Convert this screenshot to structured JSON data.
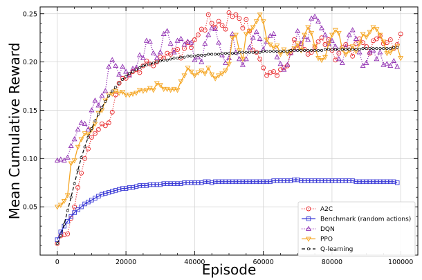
{
  "chart_data": {
    "type": "line",
    "title": "",
    "xlabel": "Episode",
    "ylabel": "Mean Cumulative Reward",
    "xlim": [
      -5000,
      105000
    ],
    "ylim": [
      0.0,
      0.257
    ],
    "xticks": [
      0,
      20000,
      40000,
      60000,
      80000,
      100000
    ],
    "yticks": [
      0.05,
      0.1,
      0.15,
      0.2,
      0.25
    ],
    "xtick_labels": [
      "0",
      "20000",
      "40000",
      "60000",
      "80000",
      "100000"
    ],
    "ytick_labels": [
      "0.05",
      "0.10",
      "0.15",
      "0.20",
      "0.25"
    ],
    "grid": true,
    "legend_position": "lower-right",
    "series": [
      {
        "name": "A2C",
        "color": "#e8282b",
        "marker": "circle",
        "linestyle": "dotted",
        "x": [
          0,
          1000,
          2000,
          3000,
          4000,
          5000,
          6000,
          7000,
          8000,
          9000,
          10000,
          11000,
          12000,
          13000,
          14000,
          15000,
          16000,
          17000,
          18000,
          19000,
          20000,
          21000,
          22000,
          23000,
          24000,
          25000,
          26000,
          27000,
          28000,
          29000,
          30000,
          31000,
          32000,
          33000,
          34000,
          35000,
          36000,
          37000,
          38000,
          39000,
          40000,
          41000,
          42000,
          43000,
          44000,
          45000,
          46000,
          47000,
          48000,
          49000,
          50000,
          51000,
          52000,
          53000,
          54000,
          55000,
          56000,
          57000,
          58000,
          59000,
          60000,
          61000,
          62000,
          63000,
          64000,
          65000,
          66000,
          67000,
          68000,
          69000,
          70000,
          71000,
          72000,
          73000,
          74000,
          75000,
          76000,
          77000,
          78000,
          79000,
          80000,
          81000,
          82000,
          83000,
          84000,
          85000,
          86000,
          87000,
          88000,
          89000,
          90000,
          91000,
          92000,
          93000,
          94000,
          95000,
          96000,
          97000,
          98000,
          99000,
          100000
        ],
        "y": [
          0.012,
          0.02,
          0.021,
          0.022,
          0.038,
          0.05,
          0.07,
          0.085,
          0.1,
          0.11,
          0.122,
          0.126,
          0.13,
          0.136,
          0.134,
          0.137,
          0.148,
          0.166,
          0.178,
          0.183,
          0.183,
          0.187,
          0.19,
          0.192,
          0.189,
          0.196,
          0.201,
          0.198,
          0.196,
          0.2,
          0.205,
          0.204,
          0.209,
          0.208,
          0.212,
          0.213,
          0.204,
          0.214,
          0.22,
          0.215,
          0.223,
          0.228,
          0.234,
          0.233,
          0.249,
          0.24,
          0.236,
          0.242,
          0.238,
          0.234,
          0.251,
          0.247,
          0.249,
          0.245,
          0.235,
          0.244,
          0.232,
          0.212,
          0.21,
          0.203,
          0.194,
          0.186,
          0.189,
          0.19,
          0.186,
          0.192,
          0.194,
          0.196,
          0.21,
          0.223,
          0.214,
          0.219,
          0.213,
          0.208,
          0.21,
          0.215,
          0.221,
          0.225,
          0.218,
          0.223,
          0.212,
          0.202,
          0.209,
          0.215,
          0.218,
          0.215,
          0.206,
          0.219,
          0.224,
          0.22,
          0.216,
          0.209,
          0.222,
          0.224,
          0.227,
          0.219,
          0.22,
          0.223,
          0.214,
          0.218,
          0.229
        ]
      },
      {
        "name": "Benchmark (random actions)",
        "color": "#3a3ad6",
        "marker": "square",
        "linestyle": "solid",
        "x": [
          0,
          1000,
          2000,
          3000,
          4000,
          5000,
          6000,
          7000,
          8000,
          9000,
          10000,
          11000,
          12000,
          13000,
          14000,
          15000,
          16000,
          17000,
          18000,
          19000,
          20000,
          21000,
          22000,
          23000,
          24000,
          25000,
          26000,
          27000,
          28000,
          29000,
          30000,
          31000,
          32000,
          33000,
          34000,
          35000,
          36000,
          37000,
          38000,
          39000,
          40000,
          41000,
          42000,
          43000,
          44000,
          45000,
          46000,
          47000,
          48000,
          49000,
          50000,
          51000,
          52000,
          53000,
          54000,
          55000,
          56000,
          57000,
          58000,
          59000,
          60000,
          61000,
          62000,
          63000,
          64000,
          65000,
          66000,
          67000,
          68000,
          69000,
          70000,
          71000,
          72000,
          73000,
          74000,
          75000,
          76000,
          77000,
          78000,
          79000,
          80000,
          81000,
          82000,
          83000,
          84000,
          85000,
          86000,
          87000,
          88000,
          89000,
          90000,
          91000,
          92000,
          93000,
          94000,
          95000,
          96000,
          97000,
          98000,
          99000
        ],
        "y": [
          0.016,
          0.024,
          0.03,
          0.035,
          0.04,
          0.044,
          0.047,
          0.05,
          0.053,
          0.055,
          0.057,
          0.059,
          0.061,
          0.063,
          0.064,
          0.065,
          0.066,
          0.067,
          0.068,
          0.069,
          0.069,
          0.07,
          0.07,
          0.071,
          0.072,
          0.072,
          0.072,
          0.073,
          0.073,
          0.073,
          0.073,
          0.074,
          0.074,
          0.074,
          0.074,
          0.074,
          0.074,
          0.075,
          0.075,
          0.075,
          0.075,
          0.075,
          0.075,
          0.076,
          0.076,
          0.075,
          0.076,
          0.076,
          0.076,
          0.076,
          0.076,
          0.076,
          0.076,
          0.076,
          0.076,
          0.076,
          0.076,
          0.076,
          0.076,
          0.076,
          0.076,
          0.076,
          0.076,
          0.077,
          0.077,
          0.077,
          0.077,
          0.077,
          0.077,
          0.078,
          0.078,
          0.077,
          0.077,
          0.077,
          0.077,
          0.077,
          0.077,
          0.077,
          0.077,
          0.077,
          0.077,
          0.077,
          0.077,
          0.077,
          0.077,
          0.077,
          0.077,
          0.076,
          0.076,
          0.076,
          0.076,
          0.076,
          0.076,
          0.076,
          0.076,
          0.076,
          0.076,
          0.076,
          0.076,
          0.075
        ]
      },
      {
        "name": "DQN",
        "color": "#8e2bb0",
        "marker": "triangle-up",
        "linestyle": "dotted",
        "x": [
          0,
          1000,
          2000,
          3000,
          4000,
          5000,
          6000,
          7000,
          8000,
          9000,
          10000,
          11000,
          12000,
          13000,
          14000,
          15000,
          16000,
          17000,
          18000,
          19000,
          20000,
          21000,
          22000,
          23000,
          24000,
          25000,
          26000,
          27000,
          28000,
          29000,
          30000,
          31000,
          32000,
          33000,
          34000,
          35000,
          36000,
          37000,
          38000,
          39000,
          40000,
          41000,
          42000,
          43000,
          44000,
          45000,
          46000,
          47000,
          48000,
          49000,
          50000,
          51000,
          52000,
          53000,
          54000,
          55000,
          56000,
          57000,
          58000,
          59000,
          60000,
          61000,
          62000,
          63000,
          64000,
          65000,
          66000,
          67000,
          68000,
          69000,
          70000,
          71000,
          72000,
          73000,
          74000,
          75000,
          76000,
          77000,
          78000,
          79000,
          80000,
          81000,
          82000,
          83000,
          84000,
          85000,
          86000,
          87000,
          88000,
          89000,
          90000,
          91000,
          92000,
          93000,
          94000,
          95000,
          96000,
          97000,
          98000,
          99000
        ],
        "y": [
          0.098,
          0.099,
          0.098,
          0.101,
          0.113,
          0.12,
          0.13,
          0.137,
          0.136,
          0.13,
          0.15,
          0.16,
          0.155,
          0.165,
          0.17,
          0.195,
          0.202,
          0.196,
          0.187,
          0.195,
          0.19,
          0.186,
          0.193,
          0.194,
          0.207,
          0.204,
          0.222,
          0.221,
          0.209,
          0.204,
          0.21,
          0.229,
          0.232,
          0.219,
          0.21,
          0.222,
          0.224,
          0.218,
          0.221,
          0.22,
          0.202,
          0.205,
          0.2,
          0.219,
          0.228,
          0.235,
          0.234,
          0.22,
          0.207,
          0.199,
          0.204,
          0.229,
          0.21,
          0.203,
          0.197,
          0.203,
          0.215,
          0.225,
          0.231,
          0.224,
          0.213,
          0.221,
          0.227,
          0.229,
          0.205,
          0.198,
          0.192,
          0.197,
          0.209,
          0.213,
          0.232,
          0.219,
          0.226,
          0.223,
          0.245,
          0.247,
          0.242,
          0.235,
          0.228,
          0.219,
          0.222,
          0.216,
          0.203,
          0.199,
          0.215,
          0.228,
          0.233,
          0.224,
          0.21,
          0.196,
          0.199,
          0.21,
          0.212,
          0.203,
          0.21,
          0.197,
          0.198,
          0.196,
          0.201,
          0.195
        ]
      },
      {
        "name": "PPO",
        "color": "#f5a623",
        "marker": "triangle-down",
        "linestyle": "solid",
        "x": [
          0,
          1000,
          2000,
          3000,
          4000,
          5000,
          6000,
          7000,
          8000,
          9000,
          10000,
          11000,
          12000,
          13000,
          14000,
          15000,
          16000,
          17000,
          18000,
          19000,
          20000,
          21000,
          22000,
          23000,
          24000,
          25000,
          26000,
          27000,
          28000,
          29000,
          30000,
          31000,
          32000,
          33000,
          34000,
          35000,
          36000,
          37000,
          38000,
          39000,
          40000,
          41000,
          42000,
          43000,
          44000,
          45000,
          46000,
          47000,
          48000,
          49000,
          50000,
          51000,
          52000,
          53000,
          54000,
          55000,
          56000,
          57000,
          58000,
          59000,
          60000,
          61000,
          62000,
          63000,
          64000,
          65000,
          66000,
          67000,
          68000,
          69000,
          70000,
          71000,
          72000,
          73000,
          74000,
          75000,
          76000,
          77000,
          78000,
          79000,
          80000,
          81000,
          82000,
          83000,
          84000,
          85000,
          86000,
          87000,
          88000,
          89000,
          90000,
          91000,
          92000,
          93000,
          94000,
          95000,
          96000,
          97000,
          98000,
          99000,
          100000
        ],
        "y": [
          0.05,
          0.052,
          0.056,
          0.062,
          0.095,
          0.098,
          0.112,
          0.12,
          0.126,
          0.125,
          0.13,
          0.136,
          0.147,
          0.15,
          0.16,
          0.166,
          0.167,
          0.17,
          0.168,
          0.169,
          0.166,
          0.166,
          0.167,
          0.168,
          0.171,
          0.17,
          0.171,
          0.173,
          0.171,
          0.178,
          0.176,
          0.172,
          0.172,
          0.171,
          0.172,
          0.171,
          0.18,
          0.186,
          0.194,
          0.19,
          0.186,
          0.189,
          0.191,
          0.188,
          0.194,
          0.187,
          0.183,
          0.186,
          0.188,
          0.191,
          0.198,
          0.225,
          0.228,
          0.212,
          0.203,
          0.229,
          0.232,
          0.236,
          0.242,
          0.249,
          0.242,
          0.223,
          0.218,
          0.215,
          0.217,
          0.208,
          0.213,
          0.209,
          0.211,
          0.214,
          0.219,
          0.212,
          0.228,
          0.236,
          0.23,
          0.216,
          0.204,
          0.202,
          0.205,
          0.219,
          0.228,
          0.233,
          0.23,
          0.213,
          0.208,
          0.212,
          0.216,
          0.211,
          0.219,
          0.229,
          0.226,
          0.231,
          0.236,
          0.234,
          0.228,
          0.221,
          0.209,
          0.21,
          0.214,
          0.216,
          0.204
        ]
      },
      {
        "name": "Q-learning",
        "color": "#000000",
        "marker": "circle-small",
        "linestyle": "dashed",
        "x": [
          0,
          1000,
          2000,
          3000,
          4000,
          5000,
          6000,
          7000,
          8000,
          9000,
          10000,
          11000,
          12000,
          13000,
          14000,
          15000,
          16000,
          17000,
          18000,
          19000,
          20000,
          21000,
          22000,
          23000,
          24000,
          25000,
          26000,
          27000,
          28000,
          29000,
          30000,
          31000,
          32000,
          33000,
          34000,
          35000,
          36000,
          37000,
          38000,
          39000,
          40000,
          41000,
          42000,
          43000,
          44000,
          45000,
          46000,
          47000,
          48000,
          49000,
          50000,
          51000,
          52000,
          53000,
          54000,
          55000,
          56000,
          57000,
          58000,
          59000,
          60000,
          61000,
          62000,
          63000,
          64000,
          65000,
          66000,
          67000,
          68000,
          69000,
          70000,
          71000,
          72000,
          73000,
          74000,
          75000,
          76000,
          77000,
          78000,
          79000,
          80000,
          81000,
          82000,
          83000,
          84000,
          85000,
          86000,
          87000,
          88000,
          89000,
          90000,
          91000,
          92000,
          93000,
          94000,
          95000,
          96000,
          97000,
          98000,
          99000
        ],
        "y": [
          0.012,
          0.02,
          0.032,
          0.046,
          0.06,
          0.074,
          0.088,
          0.101,
          0.112,
          0.122,
          0.131,
          0.139,
          0.146,
          0.153,
          0.159,
          0.165,
          0.17,
          0.174,
          0.178,
          0.182,
          0.185,
          0.188,
          0.19,
          0.192,
          0.194,
          0.196,
          0.197,
          0.198,
          0.199,
          0.2,
          0.201,
          0.202,
          0.202,
          0.203,
          0.204,
          0.204,
          0.205,
          0.205,
          0.206,
          0.206,
          0.206,
          0.207,
          0.207,
          0.207,
          0.208,
          0.208,
          0.208,
          0.208,
          0.209,
          0.209,
          0.209,
          0.209,
          0.209,
          0.21,
          0.21,
          0.21,
          0.21,
          0.21,
          0.21,
          0.21,
          0.211,
          0.211,
          0.211,
          0.211,
          0.211,
          0.211,
          0.211,
          0.211,
          0.212,
          0.212,
          0.212,
          0.212,
          0.212,
          0.212,
          0.212,
          0.212,
          0.212,
          0.212,
          0.213,
          0.213,
          0.213,
          0.213,
          0.213,
          0.213,
          0.213,
          0.213,
          0.213,
          0.213,
          0.213,
          0.214,
          0.214,
          0.214,
          0.214,
          0.214,
          0.214,
          0.214,
          0.214,
          0.214,
          0.215,
          0.215
        ]
      }
    ]
  }
}
